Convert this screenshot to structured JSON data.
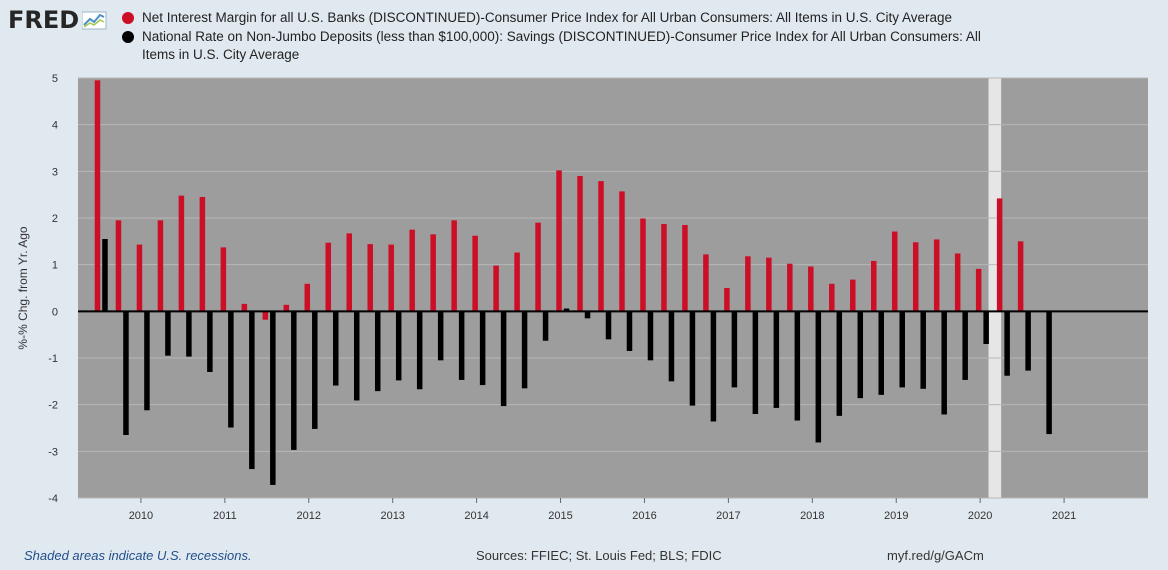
{
  "header": {
    "logo_text": "FRED",
    "logo_icon": "fred-chart-icon"
  },
  "colors": {
    "series1": "#cc0e26",
    "series2": "#000000",
    "plot_bg": "#9d9d9d",
    "recession": "#e6e6e6",
    "page_bg": "#e1e9f0"
  },
  "chart_data": {
    "type": "bar",
    "ylabel": "%-% Chg. from Yr. Ago",
    "ylim": [
      -4,
      5
    ],
    "yticks": [
      5,
      4,
      3,
      2,
      1,
      0,
      -1,
      -2,
      -3,
      -4
    ],
    "xlim": [
      2009.25,
      2022.0
    ],
    "xticks": [
      "2010",
      "2011",
      "2012",
      "2013",
      "2014",
      "2015",
      "2016",
      "2017",
      "2018",
      "2019",
      "2020",
      "2021"
    ],
    "grid": true,
    "legend_position": "top",
    "recessions": [
      [
        2020.1,
        2020.25
      ]
    ],
    "x": [
      2009.5,
      2009.75,
      2010.0,
      2010.25,
      2010.5,
      2010.75,
      2011.0,
      2011.25,
      2011.5,
      2011.75,
      2012.0,
      2012.25,
      2012.5,
      2012.75,
      2013.0,
      2013.25,
      2013.5,
      2013.75,
      2014.0,
      2014.25,
      2014.5,
      2014.75,
      2015.0,
      2015.25,
      2015.5,
      2015.75,
      2016.0,
      2016.25,
      2016.5,
      2016.75,
      2017.0,
      2017.25,
      2017.5,
      2017.75,
      2018.0,
      2018.25,
      2018.5,
      2018.75,
      2019.0,
      2019.25,
      2019.5,
      2019.75,
      2020.0,
      2020.25,
      2020.5,
      2020.75,
      2021.0
    ],
    "series": [
      {
        "name": "Net Interest Margin for all U.S. Banks (DISCONTINUED)-Consumer Price Index for All Urban Consumers: All Items in U.S. City Average",
        "color": "#cc0e26",
        "values": [
          4.95,
          1.95,
          1.43,
          1.95,
          2.48,
          2.45,
          1.37,
          0.16,
          -0.18,
          0.14,
          0.59,
          1.47,
          1.67,
          1.44,
          1.43,
          1.75,
          1.65,
          1.95,
          1.62,
          0.98,
          1.26,
          1.9,
          3.02,
          2.9,
          2.79,
          2.57,
          1.99,
          1.87,
          1.85,
          1.22,
          0.5,
          1.18,
          1.15,
          1.02,
          0.96,
          0.59,
          0.68,
          1.08,
          1.71,
          1.48,
          1.54,
          1.24,
          0.91,
          2.42,
          1.5,
          null,
          null
        ]
      },
      {
        "name": "National Rate on Non-Jumbo Deposits (less than $100,000): Savings (DISCONTINUED)-Consumer Price Index for All Urban Consumers: All Items in U.S. City Average",
        "color": "#000000",
        "values": [
          1.55,
          -2.65,
          -2.12,
          -0.95,
          -0.97,
          -1.3,
          -2.49,
          -3.38,
          -3.72,
          -2.97,
          -2.52,
          -1.59,
          -1.91,
          -1.71,
          -1.48,
          -1.67,
          -1.05,
          -1.47,
          -1.58,
          -2.03,
          -1.65,
          -0.63,
          0.06,
          -0.15,
          -0.6,
          -0.85,
          -1.05,
          -1.5,
          -2.02,
          -2.36,
          -1.63,
          -2.2,
          -2.07,
          -2.34,
          -2.81,
          -2.24,
          -1.86,
          -1.79,
          -1.63,
          -1.66,
          -2.21,
          -1.47,
          -0.7,
          -1.38,
          -1.27,
          -2.63,
          null
        ]
      }
    ]
  },
  "footer": {
    "left": "Shaded areas indicate U.S. recessions.",
    "sources": "Sources: FFIEC; St. Louis Fed; BLS; FDIC",
    "url": "myf.red/g/GACm"
  }
}
